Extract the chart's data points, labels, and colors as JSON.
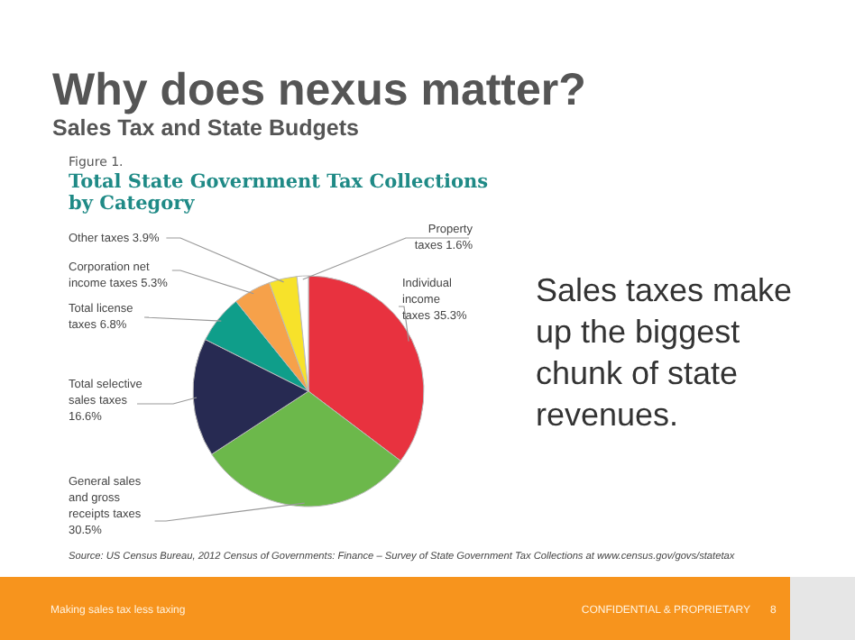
{
  "chart_data": {
    "type": "pie",
    "title": "Why does nexus matter?",
    "subtitle": "Sales Tax and State Budgets",
    "categories": [
      "Individual income taxes",
      "General sales and gross receipts taxes",
      "Total selective sales taxes",
      "Total license taxes",
      "Corporation net income taxes",
      "Other taxes",
      "Property taxes"
    ],
    "values": [
      35.3,
      30.5,
      16.6,
      6.8,
      5.3,
      3.9,
      1.6
    ],
    "colors": [
      "#e8323f",
      "#6cb84b",
      "#272a52",
      "#0f9e8a",
      "#f6a14a",
      "#f7e22a",
      "#ffffff"
    ],
    "value_labels": [
      "35.3%",
      "30.5%",
      "16.6%",
      "6.8%",
      "5.3%",
      "3.9%",
      "1.6%"
    ],
    "annotations": [
      "Figure 1.",
      "Total State Government Tax Collections by Category",
      "Sales taxes make up the biggest chunk of state revenues.",
      "Source: US Census Bureau, 2012 Census of Governments: Finance – Survey of State Government Tax Collections at www.census.gov/govs/statetax",
      "Making sales tax less taxing",
      "CONFIDENTIAL & PROPRIETARY",
      "8"
    ]
  }
}
